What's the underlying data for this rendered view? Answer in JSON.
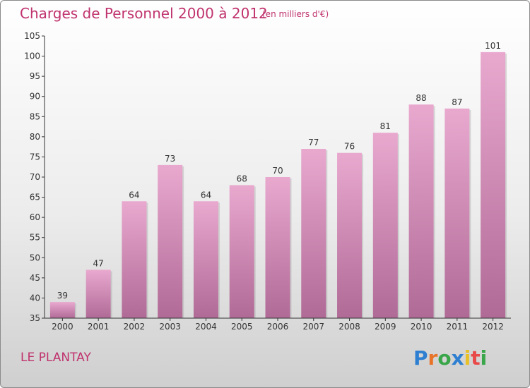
{
  "title": "Charges de Personnel 2000 à 2012",
  "subtitle": "(en milliers d'€)",
  "city": "LE PLANTAY",
  "logo_text": "Proxiti",
  "colors": {
    "title": "#c0336e",
    "bar_top": "#e9a9cf",
    "bar_bottom": "#b06a96",
    "axis": "#333333",
    "grid": "#d6d6d6"
  },
  "chart_data": {
    "type": "bar",
    "categories": [
      "2000",
      "2001",
      "2002",
      "2003",
      "2004",
      "2005",
      "2006",
      "2007",
      "2008",
      "2009",
      "2010",
      "2011",
      "2012"
    ],
    "values": [
      39,
      47,
      64,
      73,
      64,
      68,
      70,
      77,
      76,
      81,
      88,
      87,
      101
    ],
    "title": "Charges de Personnel 2000 à 2012",
    "xlabel": "",
    "ylabel": "",
    "ylim": [
      35,
      105
    ],
    "yticks": [
      35,
      40,
      45,
      50,
      55,
      60,
      65,
      70,
      75,
      80,
      85,
      90,
      95,
      100,
      105
    ],
    "grid": false,
    "data_labels": true
  }
}
